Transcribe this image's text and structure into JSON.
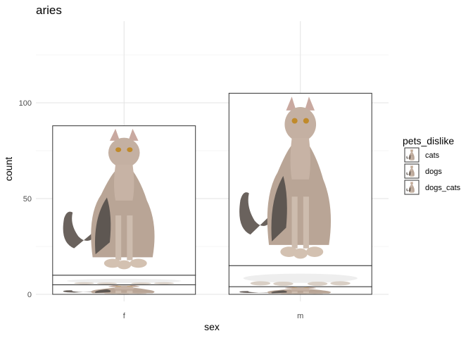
{
  "chart_data": {
    "type": "bar",
    "title": "aries",
    "xlabel": "sex",
    "ylabel": "count",
    "categories": [
      "f",
      "m"
    ],
    "series": [
      {
        "name": "dogs_cats",
        "values": [
          5,
          4
        ],
        "icon": "sphynx-cat-icon"
      },
      {
        "name": "dogs",
        "values": [
          5,
          11
        ],
        "icon": "dog-icon"
      },
      {
        "name": "cats",
        "values": [
          78,
          90
        ],
        "icon": "sphynx-cat-icon"
      }
    ],
    "legend": {
      "title": "pets_dislike",
      "entries": [
        "cats",
        "dogs",
        "dogs_cats"
      ],
      "position": "right"
    },
    "yticks": [
      0,
      50,
      100
    ],
    "ylim": [
      0,
      135
    ],
    "grid": true,
    "stacked": true,
    "bar_fill": "image"
  },
  "colors": {
    "bar_outline": "#333333",
    "grid": "#e3e3e3",
    "cat_skin": "#bda99a",
    "cat_dark": "#5e5752"
  }
}
